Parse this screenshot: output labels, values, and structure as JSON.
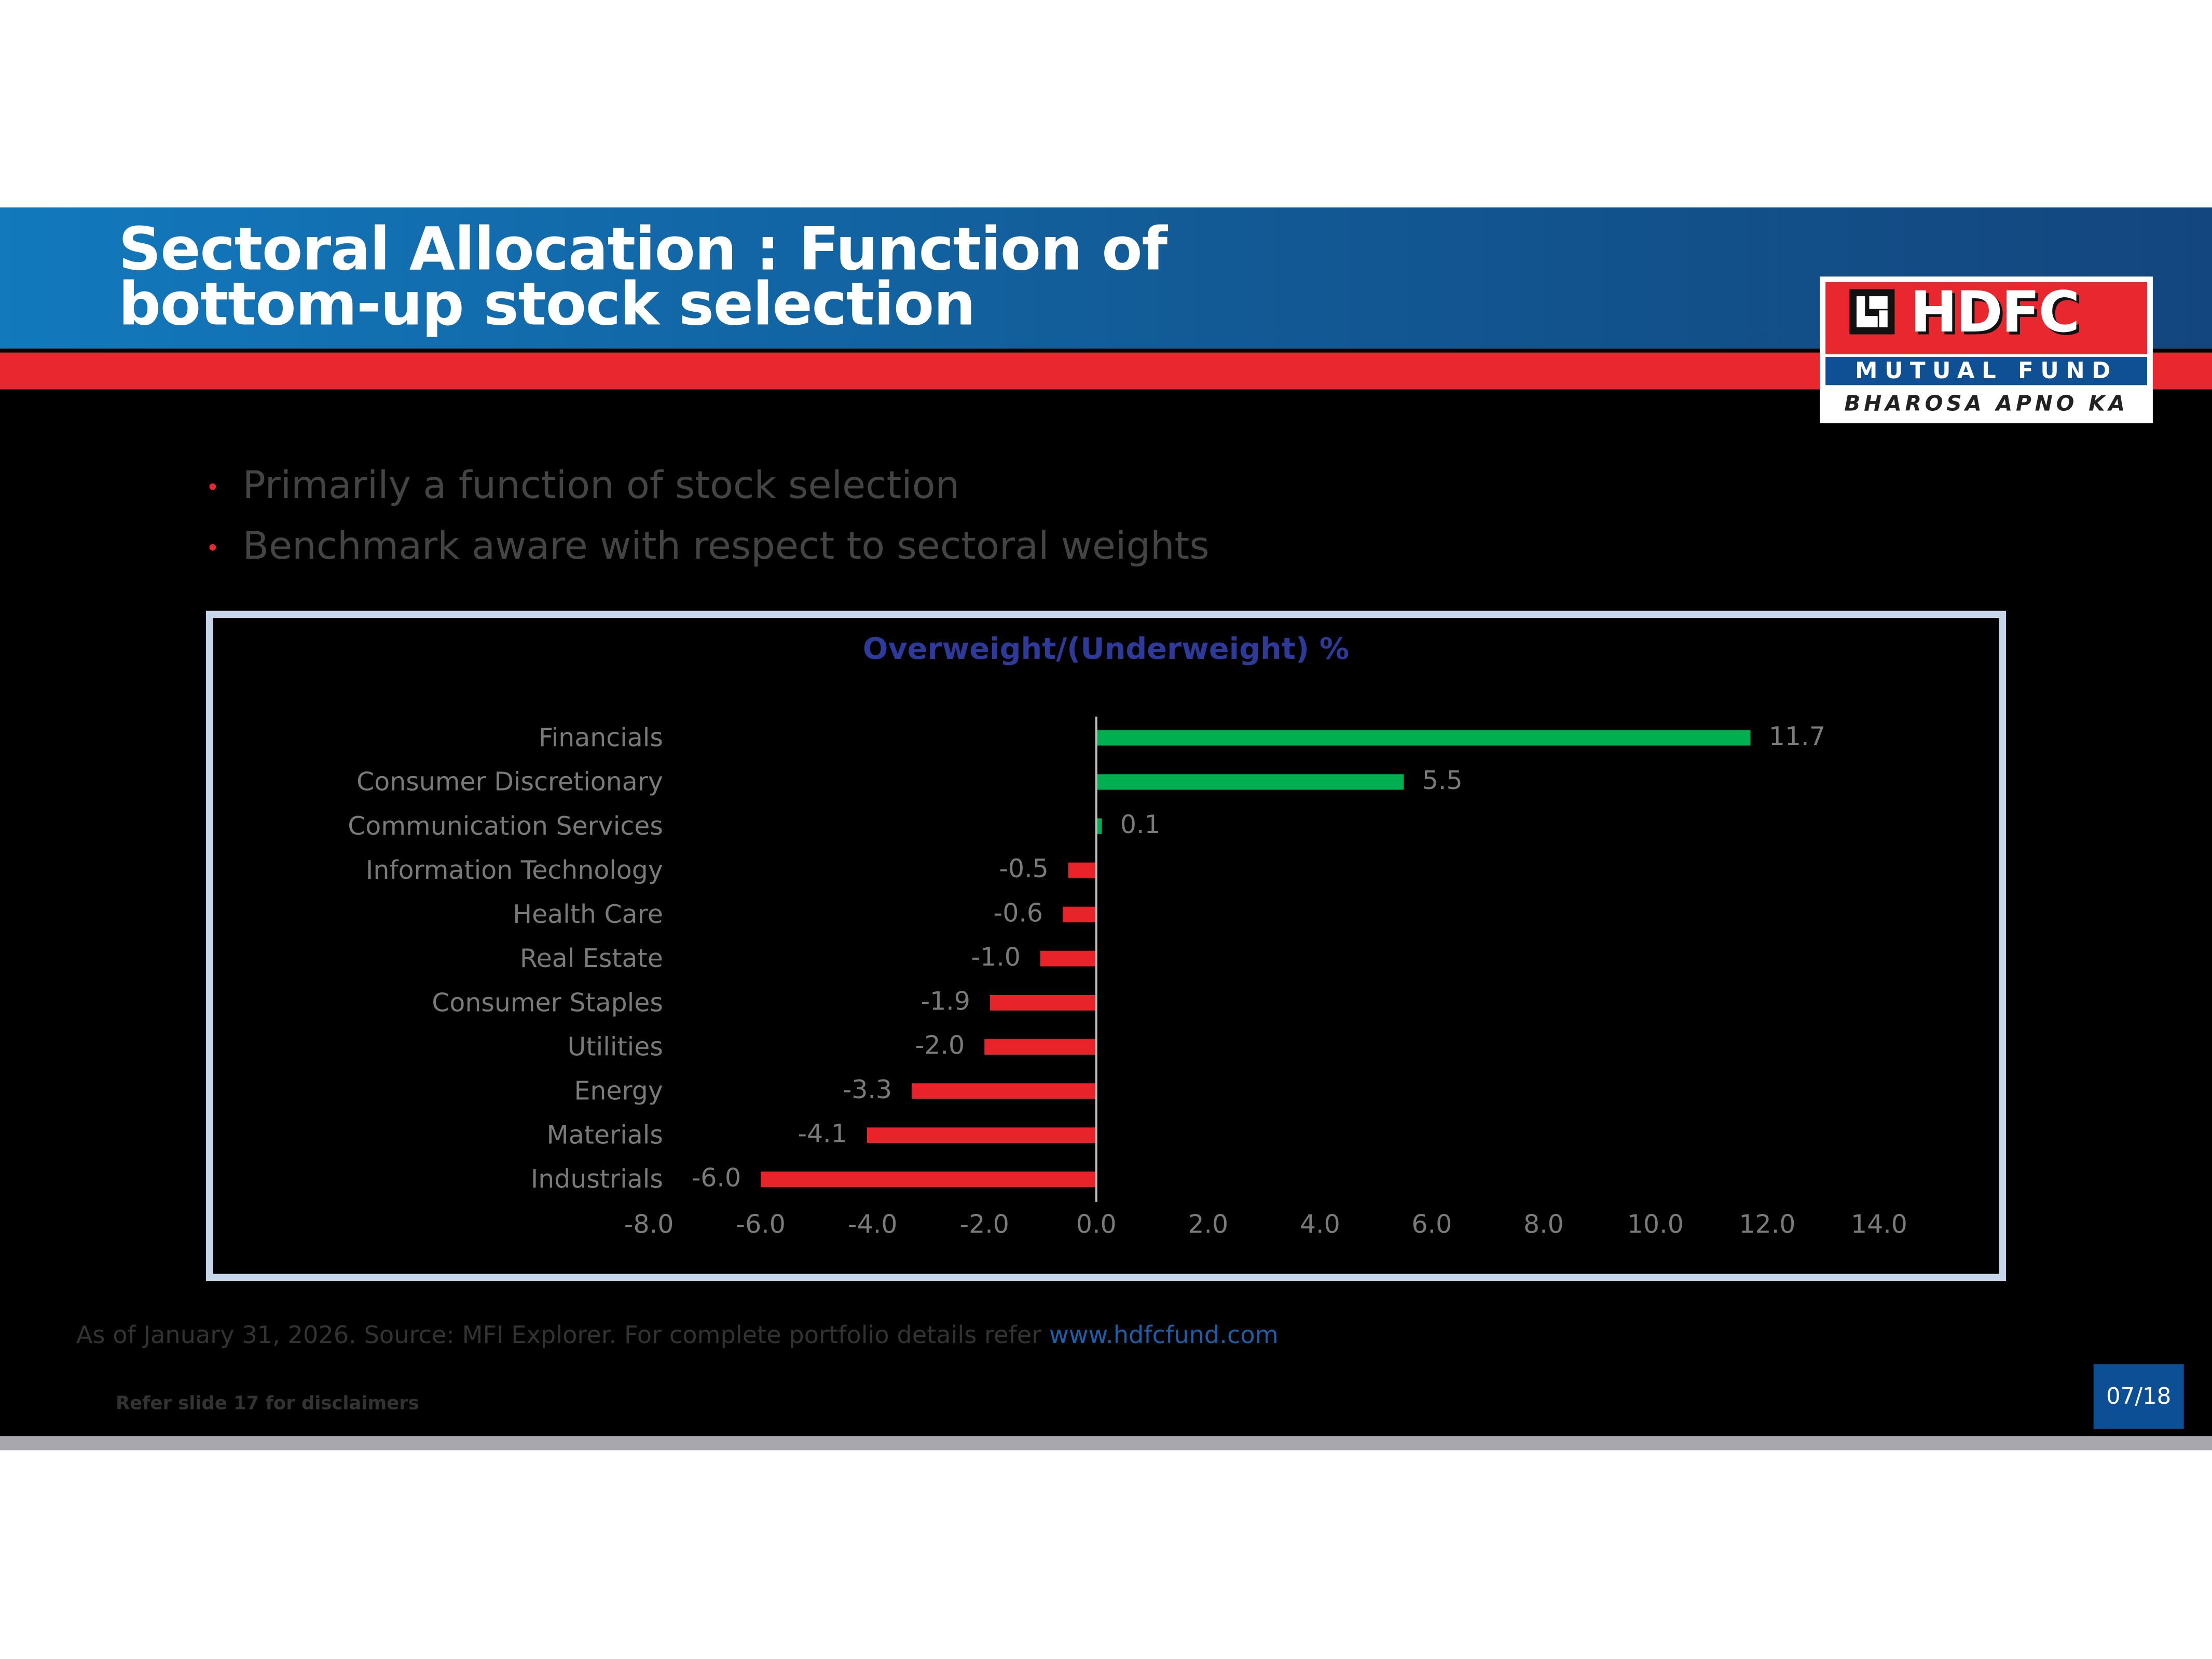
{
  "header": {
    "title_line1": "Sectoral Allocation : Function of",
    "title_line2": "bottom-up stock selection"
  },
  "logo": {
    "brand": "HDFC",
    "sub": "MUTUAL FUND",
    "tagline": "BHAROSA APNO KA"
  },
  "bullets": [
    "Primarily a function of stock selection",
    "Benchmark aware with respect to sectoral weights"
  ],
  "colors": {
    "positive": "#00b050",
    "negative": "#e8232a",
    "title": "#2e3a9a"
  },
  "chart_data": {
    "type": "bar",
    "orientation": "horizontal",
    "title": "Overweight/(Underweight) %",
    "categories": [
      "Financials",
      "Consumer Discretionary",
      "Communication Services",
      "Information Technology",
      "Health Care",
      "Real Estate",
      "Consumer Staples",
      "Utilities",
      "Energy",
      "Materials",
      "Industrials"
    ],
    "values": [
      11.7,
      5.5,
      0.1,
      -0.5,
      -0.6,
      -1.0,
      -1.9,
      -2.0,
      -3.3,
      -4.1,
      -6.0
    ],
    "value_labels": [
      "11.7",
      "5.5",
      "0.1",
      "-0.5",
      "-0.6",
      "-1.0",
      "-1.9",
      "-2.0",
      "-3.3",
      "-4.1",
      "-6.0"
    ],
    "xlim": [
      -8,
      14
    ],
    "xticks": [
      "-8.0",
      "-6.0",
      "-4.0",
      "-2.0",
      "0.0",
      "2.0",
      "4.0",
      "6.0",
      "8.0",
      "10.0",
      "12.0",
      "14.0"
    ],
    "grid": false,
    "legend": "none"
  },
  "footer": {
    "source": "As of January 31, 2026.  Source: MFI Explorer. For complete portfolio details refer ",
    "link": "www.hdfcfund.com",
    "disclaimer": "Refer slide 17 for disclaimers",
    "page": "07/18"
  }
}
